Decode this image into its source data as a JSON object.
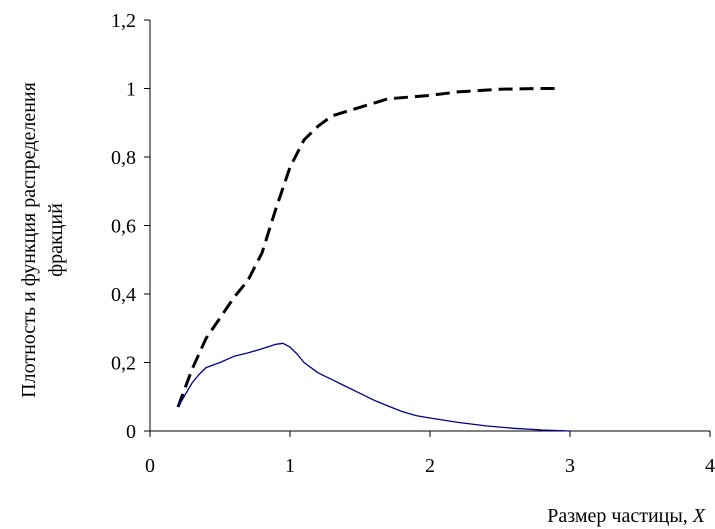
{
  "chart_data": {
    "type": "line",
    "xlabel_text": "Размер частицы, ",
    "xlabel_var": "X",
    "ylabel_line1": "Плотность и функция распределения",
    "ylabel_line2": "фракций",
    "xlim": [
      0,
      4
    ],
    "ylim": [
      0,
      1.2
    ],
    "x_ticks": [
      "0",
      "1",
      "2",
      "3",
      "4"
    ],
    "y_ticks": [
      "0",
      "0,2",
      "0,4",
      "0,6",
      "0,8",
      "1",
      "1,2"
    ],
    "grid": false,
    "series": [
      {
        "style": "dashed",
        "color": "#000000",
        "points": [
          [
            0.2,
            0.07
          ],
          [
            0.3,
            0.18
          ],
          [
            0.4,
            0.27
          ],
          [
            0.5,
            0.33
          ],
          [
            0.6,
            0.39
          ],
          [
            0.7,
            0.44
          ],
          [
            0.8,
            0.52
          ],
          [
            0.9,
            0.65
          ],
          [
            1.0,
            0.77
          ],
          [
            1.1,
            0.85
          ],
          [
            1.2,
            0.89
          ],
          [
            1.3,
            0.92
          ],
          [
            1.5,
            0.945
          ],
          [
            1.7,
            0.97
          ],
          [
            2.0,
            0.98
          ],
          [
            2.2,
            0.99
          ],
          [
            2.5,
            0.998
          ],
          [
            2.8,
            1.0
          ],
          [
            2.9,
            1.0
          ]
        ]
      },
      {
        "style": "solid",
        "color": "#00008b",
        "points": [
          [
            0.2,
            0.07
          ],
          [
            0.25,
            0.105
          ],
          [
            0.3,
            0.14
          ],
          [
            0.35,
            0.165
          ],
          [
            0.4,
            0.185
          ],
          [
            0.5,
            0.2
          ],
          [
            0.6,
            0.218
          ],
          [
            0.7,
            0.228
          ],
          [
            0.8,
            0.24
          ],
          [
            0.9,
            0.253
          ],
          [
            0.95,
            0.256
          ],
          [
            1.0,
            0.245
          ],
          [
            1.05,
            0.225
          ],
          [
            1.1,
            0.2
          ],
          [
            1.2,
            0.17
          ],
          [
            1.3,
            0.15
          ],
          [
            1.4,
            0.13
          ],
          [
            1.5,
            0.11
          ],
          [
            1.6,
            0.09
          ],
          [
            1.7,
            0.073
          ],
          [
            1.8,
            0.057
          ],
          [
            1.9,
            0.045
          ],
          [
            2.0,
            0.038
          ],
          [
            2.2,
            0.025
          ],
          [
            2.4,
            0.015
          ],
          [
            2.6,
            0.008
          ],
          [
            2.8,
            0.003
          ],
          [
            3.0,
            0.0
          ]
        ]
      }
    ]
  }
}
